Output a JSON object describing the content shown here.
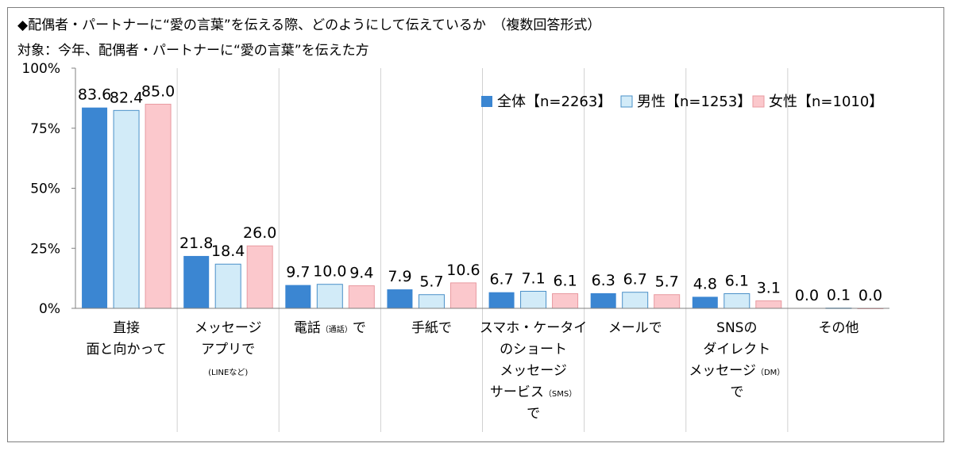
{
  "header": {
    "title": "◆配偶者・パートナーに“愛の言葉”を伝える際、どのようにして伝えているか　（複数回答形式）",
    "subtitle": "対象：今年、配偶者・パートナーに“愛の言葉”を伝えた方"
  },
  "colors": {
    "all": "#3b86d2",
    "male": "#d2ebf8",
    "female": "#fbc8cc",
    "grid": "#d0d0d0"
  },
  "chart_data": {
    "type": "bar",
    "ylim": [
      0,
      100
    ],
    "yticks": [
      "0%",
      "25%",
      "50%",
      "75%",
      "100%"
    ],
    "grid": "vertical separators",
    "legend_position": "top-right",
    "categories": [
      {
        "lines": [
          [
            "直接"
          ],
          [
            "面と向かって"
          ]
        ]
      },
      {
        "lines": [
          [
            "メッセージ"
          ],
          [
            "アプリで"
          ],
          [
            "",
            "(LINEなど)"
          ]
        ]
      },
      {
        "lines": [
          [
            "電話",
            "（通話）",
            "で"
          ]
        ]
      },
      {
        "lines": [
          [
            "手紙で"
          ]
        ]
      },
      {
        "lines": [
          [
            "スマホ・ケータイ"
          ],
          [
            "のショート"
          ],
          [
            "メッセージ"
          ],
          [
            "サービス",
            "（SMS）"
          ],
          [
            "で"
          ]
        ]
      },
      {
        "lines": [
          [
            "メールで"
          ]
        ]
      },
      {
        "lines": [
          [
            "SNSの"
          ],
          [
            "ダイレクト"
          ],
          [
            "メッセージ",
            "（DM）"
          ],
          [
            "で"
          ]
        ]
      },
      {
        "lines": [
          [
            "その他"
          ]
        ]
      }
    ],
    "series": [
      {
        "name": "全体【n=2263】",
        "values": [
          83.6,
          21.8,
          9.7,
          7.9,
          6.7,
          6.3,
          4.8,
          0.0
        ],
        "labels": [
          "83.6",
          "21.8",
          "9.7",
          "7.9",
          "6.7",
          "6.3",
          "4.8",
          "0.0"
        ]
      },
      {
        "name": "男性【n=1253】",
        "values": [
          82.4,
          18.4,
          10.0,
          5.7,
          7.1,
          6.7,
          6.1,
          0.1
        ],
        "labels": [
          "82.4",
          "18.4",
          "10.0",
          "5.7",
          "7.1",
          "6.7",
          "6.1",
          "0.1"
        ]
      },
      {
        "name": "女性【n=1010】",
        "values": [
          85.0,
          26.0,
          9.4,
          10.6,
          6.1,
          5.7,
          3.1,
          0.0
        ],
        "labels": [
          "85.0",
          "26.0",
          "9.4",
          "10.6",
          "6.1",
          "5.7",
          "3.1",
          "0.0"
        ]
      }
    ]
  }
}
